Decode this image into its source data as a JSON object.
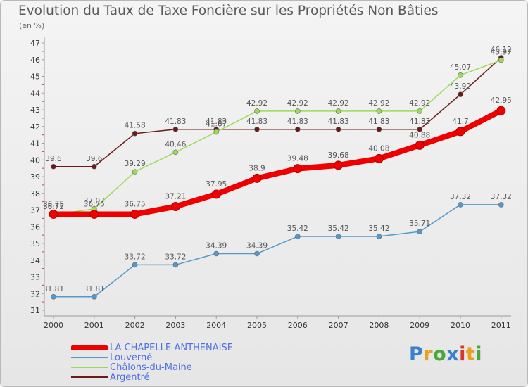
{
  "title": "Evolution du Taux de Taxe Foncière sur les Propriétés Non Bâties",
  "subtitle": "(en %)",
  "logo": {
    "text": "Proxiti"
  },
  "chart_data": {
    "type": "line",
    "title": "Evolution du Taux de Taxe Foncière sur les Propriétés Non Bâties",
    "ylabel": "(en %)",
    "xlabel": "",
    "ylim": [
      31,
      47
    ],
    "yticks": [
      31,
      32,
      33,
      34,
      35,
      36,
      37,
      38,
      39,
      40,
      41,
      42,
      43,
      44,
      45,
      46,
      47
    ],
    "categories": [
      "2000",
      "2001",
      "2002",
      "2003",
      "2004",
      "2005",
      "2006",
      "2007",
      "2008",
      "2009",
      "2010",
      "2011"
    ],
    "grid": false,
    "legend_position": "bottom-left",
    "series": [
      {
        "name": "Argentré",
        "color": "#6b1a1a",
        "values": [
          39.6,
          39.6,
          41.58,
          41.83,
          41.83,
          41.83,
          41.83,
          41.83,
          41.83,
          41.83,
          43.92,
          46.12
        ],
        "labels": [
          "39.6",
          "39.6",
          "41.58",
          "41.83",
          "41.83",
          "41.83",
          "41.83",
          "41.83",
          "41.83",
          "41.83",
          "43.92",
          "46.12"
        ]
      },
      {
        "name": "Châlons-du-Maine",
        "color": "#99dd55",
        "values": [
          36.72,
          37.07,
          39.29,
          40.46,
          41.67,
          42.92,
          42.92,
          42.92,
          42.92,
          42.92,
          45.07,
          45.97
        ],
        "labels": [
          "36.72",
          "37.07",
          "39.29",
          "40.46",
          "41.67",
          "42.92",
          "42.92",
          "42.92",
          "42.92",
          "42.92",
          "45.07",
          "45.97"
        ]
      },
      {
        "name": "Louverné",
        "color": "#5599cc",
        "values": [
          31.81,
          31.81,
          33.72,
          33.72,
          34.39,
          34.39,
          35.42,
          35.42,
          35.42,
          35.71,
          37.32,
          37.32
        ],
        "labels": [
          "31.81",
          "31.81",
          "33.72",
          "33.72",
          "34.39",
          "34.39",
          "35.42",
          "35.42",
          "35.42",
          "35.71",
          "37.32",
          "37.32"
        ]
      },
      {
        "name": "LA CHAPELLE-ANTHENAISE",
        "color": "#ee0000",
        "values": [
          36.75,
          36.75,
          36.75,
          37.21,
          37.95,
          38.9,
          39.48,
          39.68,
          40.08,
          40.88,
          41.7,
          42.95
        ],
        "labels": [
          "36.75",
          "36.75",
          "36.75",
          "37.21",
          "37.95",
          "38.9",
          "39.48",
          "39.68",
          "40.08",
          "40.88",
          "41.7",
          "42.95"
        ]
      }
    ]
  },
  "legend": [
    {
      "label": "LA CHAPELLE-ANTHENAISE",
      "color": "#ee0000"
    },
    {
      "label": "Louverné",
      "color": "#5599cc"
    },
    {
      "label": "Châlons-du-Maine",
      "color": "#99dd55"
    },
    {
      "label": "Argentré",
      "color": "#6b1a1a"
    }
  ]
}
